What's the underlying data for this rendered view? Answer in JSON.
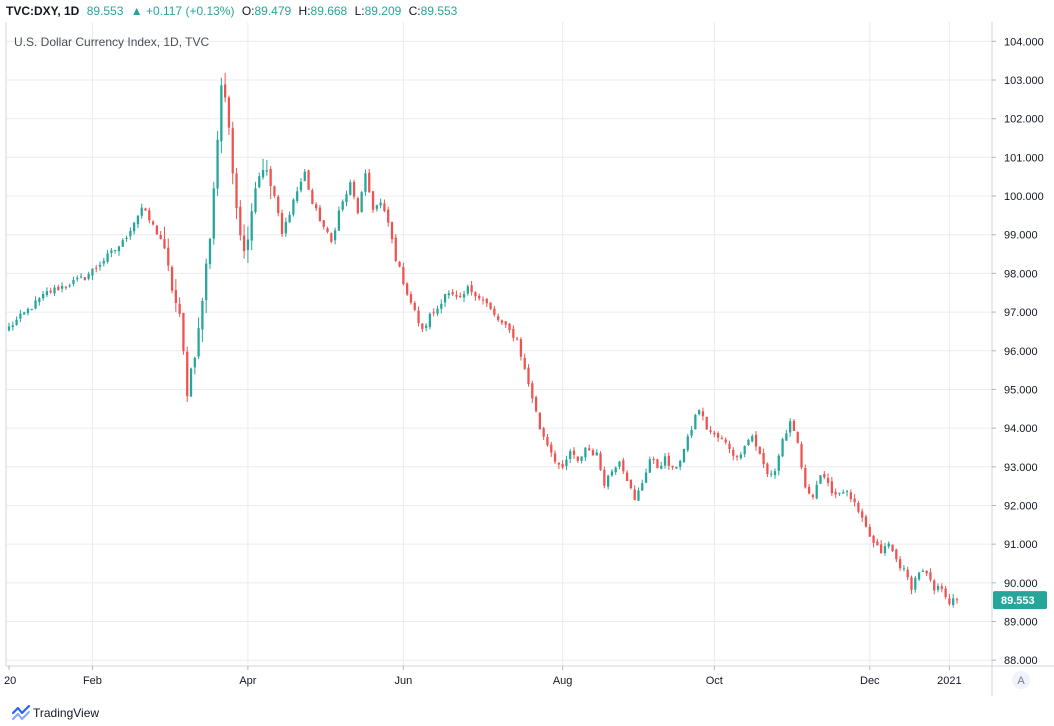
{
  "header": {
    "symbol": "TVC:DXY, 1D",
    "last": "89.553",
    "change": "▲ +0.117 (+0.13%)",
    "open_label": "O:",
    "open": "89.479",
    "high_label": "H:",
    "high": "89.668",
    "low_label": "L:",
    "low": "89.209",
    "close_label": "C:",
    "close": "89.553"
  },
  "chart_title": "U.S. Dollar Currency Index, 1D, TVC",
  "price_tag": "89.553",
  "scale_mode_button": "A",
  "brand": "TradingView",
  "colors": {
    "up": "#26a69a",
    "down": "#ef5350",
    "grid": "#e9ecf0",
    "tag_bg": "#26a69a"
  },
  "chart_data": {
    "type": "candlestick",
    "title": "U.S. Dollar Currency Index, 1D, TVC",
    "xlabel": "",
    "ylabel": "",
    "ylim": [
      87.85,
      104.5
    ],
    "y_ticks": [
      "88.000",
      "89.000",
      "90.000",
      "91.000",
      "92.000",
      "93.000",
      "94.000",
      "95.000",
      "96.000",
      "97.000",
      "98.000",
      "99.000",
      "100.000",
      "101.000",
      "102.000",
      "103.000",
      "104.000"
    ],
    "x_ticks": [
      {
        "label": "20",
        "index": 0
      },
      {
        "label": "Feb",
        "index": 22
      },
      {
        "label": "Apr",
        "index": 63
      },
      {
        "label": "Jun",
        "index": 104
      },
      {
        "label": "Aug",
        "index": 146
      },
      {
        "label": "Oct",
        "index": 186
      },
      {
        "label": "Dec",
        "index": 227
      },
      {
        "label": "2021",
        "index": 248
      }
    ],
    "grid": true,
    "last_close": 89.553,
    "close_path": [
      [
        0,
        96.6
      ],
      [
        10,
        97.5
      ],
      [
        20,
        97.9
      ],
      [
        30,
        98.8
      ],
      [
        35,
        99.7
      ],
      [
        40,
        98.9
      ],
      [
        45,
        96.8
      ],
      [
        47,
        95.0
      ],
      [
        50,
        96.5
      ],
      [
        53,
        99.0
      ],
      [
        55,
        101.5
      ],
      [
        56,
        102.9
      ],
      [
        58,
        101.8
      ],
      [
        60,
        99.8
      ],
      [
        62,
        98.5
      ],
      [
        65,
        100.3
      ],
      [
        67,
        100.8
      ],
      [
        70,
        100.0
      ],
      [
        72,
        99.0
      ],
      [
        75,
        99.9
      ],
      [
        78,
        100.6
      ],
      [
        80,
        99.8
      ],
      [
        83,
        99.2
      ],
      [
        85,
        98.8
      ],
      [
        87,
        99.6
      ],
      [
        90,
        100.3
      ],
      [
        92,
        99.6
      ],
      [
        94,
        100.5
      ],
      [
        96,
        99.7
      ],
      [
        98,
        99.8
      ],
      [
        100,
        99.3
      ],
      [
        102,
        98.4
      ],
      [
        105,
        97.5
      ],
      [
        107,
        97.0
      ],
      [
        109,
        96.5
      ],
      [
        111,
        96.9
      ],
      [
        113,
        97.1
      ],
      [
        115,
        97.5
      ],
      [
        117,
        97.4
      ],
      [
        119,
        97.3
      ],
      [
        121,
        97.6
      ],
      [
        123,
        97.5
      ],
      [
        126,
        97.2
      ],
      [
        128,
        96.9
      ],
      [
        131,
        96.6
      ],
      [
        134,
        96.3
      ],
      [
        136,
        95.5
      ],
      [
        138,
        94.8
      ],
      [
        140,
        94.0
      ],
      [
        142,
        93.6
      ],
      [
        144,
        93.2
      ],
      [
        146,
        92.9
      ],
      [
        148,
        93.4
      ],
      [
        150,
        93.1
      ],
      [
        152,
        93.5
      ],
      [
        155,
        93.3
      ],
      [
        157,
        92.6
      ],
      [
        159,
        92.9
      ],
      [
        161,
        93.2
      ],
      [
        163,
        92.7
      ],
      [
        165,
        92.1
      ],
      [
        167,
        92.6
      ],
      [
        169,
        93.2
      ],
      [
        171,
        93.0
      ],
      [
        173,
        93.2
      ],
      [
        175,
        92.9
      ],
      [
        177,
        93.2
      ],
      [
        179,
        93.7
      ],
      [
        181,
        94.3
      ],
      [
        182,
        94.5
      ],
      [
        184,
        94.0
      ],
      [
        186,
        93.8
      ],
      [
        188,
        93.7
      ],
      [
        190,
        93.5
      ],
      [
        192,
        93.2
      ],
      [
        194,
        93.6
      ],
      [
        196,
        93.8
      ],
      [
        198,
        93.3
      ],
      [
        200,
        92.8
      ],
      [
        202,
        92.9
      ],
      [
        204,
        93.7
      ],
      [
        206,
        94.1
      ],
      [
        208,
        93.6
      ],
      [
        210,
        92.4
      ],
      [
        212,
        92.3
      ],
      [
        214,
        92.8
      ],
      [
        216,
        92.5
      ],
      [
        218,
        92.3
      ],
      [
        220,
        92.4
      ],
      [
        222,
        92.2
      ],
      [
        224,
        91.8
      ],
      [
        226,
        91.4
      ],
      [
        228,
        91.0
      ],
      [
        230,
        90.8
      ],
      [
        232,
        91.0
      ],
      [
        234,
        90.6
      ],
      [
        236,
        90.3
      ],
      [
        238,
        89.9
      ],
      [
        240,
        90.3
      ],
      [
        242,
        90.2
      ],
      [
        244,
        89.8
      ],
      [
        246,
        89.9
      ],
      [
        248,
        89.5
      ],
      [
        250,
        89.553
      ]
    ]
  }
}
